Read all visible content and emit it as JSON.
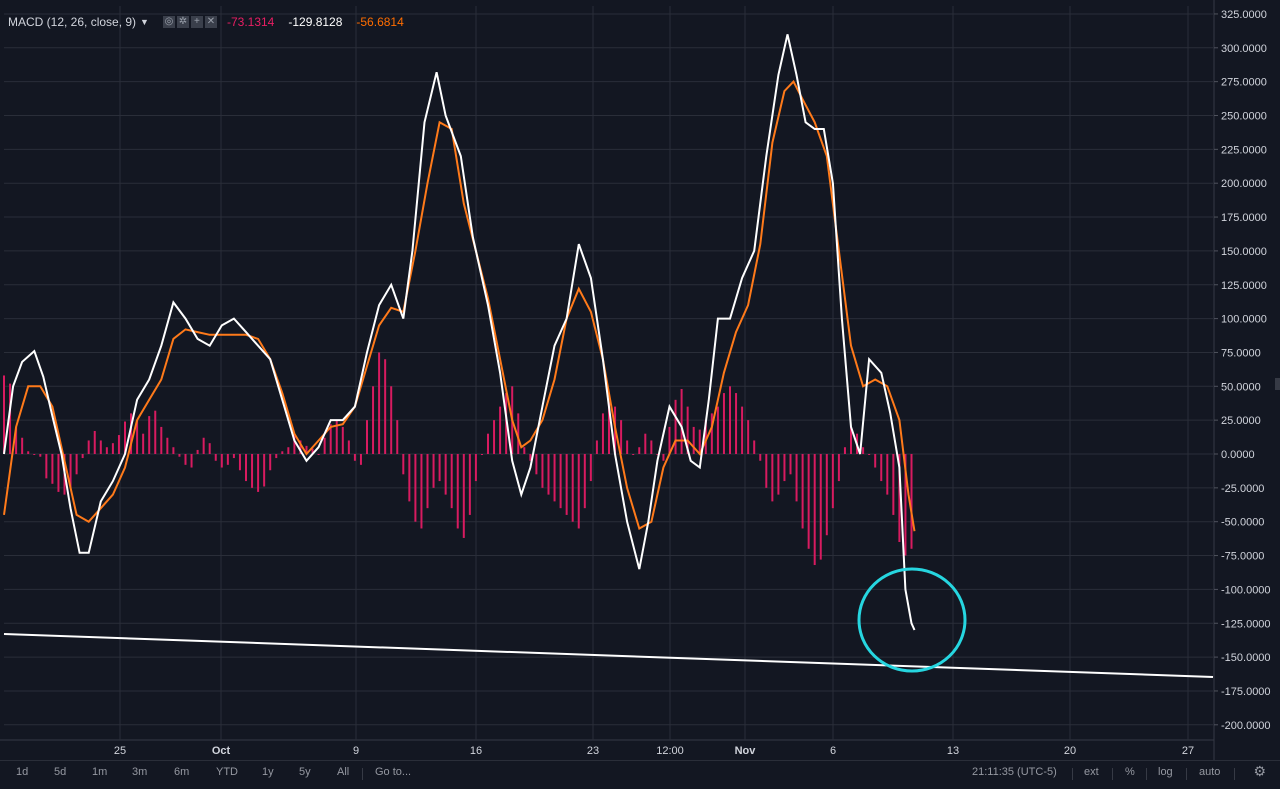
{
  "legend": {
    "title": "MACD (12, 26, close, 9)",
    "values": [
      "-73.1314",
      "-129.8128",
      "-56.6814"
    ]
  },
  "colors": {
    "background": "#131722",
    "grid": "#2a2e39",
    "macd": "#ffffff",
    "signal": "#ff7a1a",
    "histogram": "#d81b60",
    "annotation_circle": "#26d6e0",
    "trendline": "#ffffff"
  },
  "timeframes": [
    "1d",
    "5d",
    "1m",
    "3m",
    "6m",
    "YTD",
    "1y",
    "5y",
    "All",
    "Go to..."
  ],
  "status": {
    "clock": "21:11:35 (UTC-5)",
    "ext": "ext",
    "percent": "%",
    "log": "log",
    "auto": "auto"
  },
  "chart_data": {
    "type": "line",
    "title": "",
    "ylim": [
      -210,
      325
    ],
    "y_ticks": [
      "325.0000",
      "300.0000",
      "275.0000",
      "250.0000",
      "225.0000",
      "200.0000",
      "175.0000",
      "150.0000",
      "125.0000",
      "100.0000",
      "75.0000",
      "50.0000",
      "25.0000",
      "0.0000",
      "-25.0000",
      "-50.0000",
      "-75.0000",
      "-100.0000",
      "-125.0000",
      "-150.0000",
      "-175.0000",
      "-200.0000"
    ],
    "x_ticks": [
      "25",
      "Oct",
      "9",
      "16",
      "23",
      "12:00",
      "Nov",
      "6",
      "13",
      "20",
      "27"
    ],
    "bold_x_ticks": [
      "Oct",
      "Nov"
    ],
    "grid": true,
    "series": [
      {
        "role": "macd",
        "points": [
          [
            0.0,
            0
          ],
          [
            1.5,
            50
          ],
          [
            3.0,
            68
          ],
          [
            5.0,
            76
          ],
          [
            6.5,
            57
          ],
          [
            8.0,
            28
          ],
          [
            9.5,
            0
          ],
          [
            11.0,
            -40
          ],
          [
            12.5,
            -73
          ],
          [
            14.0,
            -73
          ],
          [
            16.0,
            -35
          ],
          [
            18.0,
            -20
          ],
          [
            20.0,
            0
          ],
          [
            22.0,
            40
          ],
          [
            24.0,
            55
          ],
          [
            26.0,
            80
          ],
          [
            28.0,
            112
          ],
          [
            30.0,
            100
          ],
          [
            32.0,
            85
          ],
          [
            34.0,
            80
          ],
          [
            36.0,
            95
          ],
          [
            38.0,
            100
          ],
          [
            40.0,
            90
          ],
          [
            42.0,
            80
          ],
          [
            44.0,
            70
          ],
          [
            46.0,
            40
          ],
          [
            48.0,
            10
          ],
          [
            50.0,
            -5
          ],
          [
            52.0,
            5
          ],
          [
            54.0,
            25
          ],
          [
            56.0,
            25
          ],
          [
            58.0,
            35
          ],
          [
            60.0,
            75
          ],
          [
            62.0,
            110
          ],
          [
            64.0,
            125
          ],
          [
            66.0,
            100
          ],
          [
            67.5,
            150
          ],
          [
            69.5,
            245
          ],
          [
            71.5,
            282
          ],
          [
            73.0,
            250
          ],
          [
            75.5,
            220
          ],
          [
            77.5,
            160
          ],
          [
            80.0,
            110
          ],
          [
            82.0,
            60
          ],
          [
            84.0,
            -5
          ],
          [
            85.5,
            -30
          ],
          [
            87.0,
            -10
          ],
          [
            89.0,
            35
          ],
          [
            91.0,
            80
          ],
          [
            93.0,
            100
          ],
          [
            95.0,
            155
          ],
          [
            97.0,
            130
          ],
          [
            99.0,
            70
          ],
          [
            101.0,
            0
          ],
          [
            103.0,
            -50
          ],
          [
            105.0,
            -85
          ],
          [
            106.5,
            -50
          ],
          [
            108.0,
            -5
          ],
          [
            110.0,
            35
          ],
          [
            112.0,
            20
          ],
          [
            113.5,
            -5
          ],
          [
            115.0,
            -10
          ],
          [
            116.5,
            40
          ],
          [
            118.0,
            100
          ],
          [
            120.0,
            100
          ],
          [
            122.0,
            130
          ],
          [
            124.0,
            150
          ],
          [
            126.0,
            220
          ],
          [
            128.0,
            280
          ],
          [
            129.5,
            310
          ],
          [
            131.0,
            280
          ],
          [
            132.5,
            245
          ],
          [
            134.0,
            240
          ],
          [
            135.5,
            240
          ],
          [
            137.0,
            200
          ],
          [
            138.5,
            100
          ],
          [
            140.0,
            20
          ],
          [
            141.5,
            0
          ],
          [
            143.0,
            70
          ],
          [
            145.0,
            60
          ],
          [
            146.5,
            30
          ],
          [
            148.0,
            -10
          ],
          [
            149.0,
            -100
          ],
          [
            150.0,
            -125
          ],
          [
            150.5,
            -130
          ]
        ]
      },
      {
        "role": "signal",
        "points": [
          [
            0.0,
            -45
          ],
          [
            2.0,
            20
          ],
          [
            4.0,
            50
          ],
          [
            6.0,
            50
          ],
          [
            8.0,
            35
          ],
          [
            10.0,
            -5
          ],
          [
            12.0,
            -45
          ],
          [
            14.0,
            -50
          ],
          [
            16.0,
            -40
          ],
          [
            18.0,
            -30
          ],
          [
            20.0,
            -10
          ],
          [
            22.0,
            25
          ],
          [
            24.0,
            40
          ],
          [
            26.0,
            55
          ],
          [
            28.0,
            85
          ],
          [
            30.0,
            92
          ],
          [
            32.0,
            90
          ],
          [
            34.0,
            88
          ],
          [
            36.0,
            88
          ],
          [
            38.0,
            88
          ],
          [
            40.0,
            88
          ],
          [
            42.0,
            85
          ],
          [
            44.0,
            70
          ],
          [
            46.0,
            45
          ],
          [
            48.0,
            15
          ],
          [
            50.0,
            0
          ],
          [
            52.0,
            10
          ],
          [
            54.0,
            20
          ],
          [
            56.0,
            22
          ],
          [
            58.0,
            35
          ],
          [
            60.0,
            65
          ],
          [
            62.0,
            95
          ],
          [
            64.0,
            108
          ],
          [
            66.0,
            105
          ],
          [
            68.0,
            150
          ],
          [
            70.0,
            200
          ],
          [
            72.0,
            245
          ],
          [
            74.0,
            240
          ],
          [
            76.0,
            185
          ],
          [
            78.0,
            150
          ],
          [
            80.0,
            115
          ],
          [
            82.0,
            70
          ],
          [
            84.0,
            25
          ],
          [
            85.5,
            5
          ],
          [
            87.0,
            10
          ],
          [
            89.0,
            25
          ],
          [
            91.0,
            55
          ],
          [
            93.0,
            100
          ],
          [
            95.0,
            122
          ],
          [
            97.0,
            105
          ],
          [
            99.0,
            70
          ],
          [
            101.0,
            20
          ],
          [
            103.0,
            -25
          ],
          [
            105.0,
            -55
          ],
          [
            107.0,
            -50
          ],
          [
            109.0,
            -10
          ],
          [
            111.0,
            10
          ],
          [
            113.0,
            10
          ],
          [
            115.0,
            0
          ],
          [
            117.0,
            20
          ],
          [
            119.0,
            60
          ],
          [
            121.0,
            90
          ],
          [
            123.0,
            110
          ],
          [
            125.0,
            155
          ],
          [
            127.0,
            230
          ],
          [
            129.0,
            268
          ],
          [
            130.5,
            275
          ],
          [
            132.0,
            262
          ],
          [
            134.0,
            245
          ],
          [
            136.0,
            220
          ],
          [
            138.0,
            150
          ],
          [
            140.0,
            80
          ],
          [
            142.0,
            50
          ],
          [
            144.0,
            55
          ],
          [
            146.0,
            50
          ],
          [
            148.0,
            25
          ],
          [
            149.5,
            -30
          ],
          [
            150.5,
            -57
          ]
        ]
      },
      {
        "role": "histogram",
        "points": [
          [
            0,
            58
          ],
          [
            1,
            52
          ],
          [
            2,
            20
          ],
          [
            3,
            12
          ],
          [
            4,
            2
          ],
          [
            5,
            0
          ],
          [
            6,
            -2
          ],
          [
            7,
            -18
          ],
          [
            8,
            -22
          ],
          [
            9,
            -28
          ],
          [
            10,
            -30
          ],
          [
            11,
            -25
          ],
          [
            12,
            -15
          ],
          [
            13,
            -3
          ],
          [
            14,
            10
          ],
          [
            15,
            17
          ],
          [
            16,
            10
          ],
          [
            17,
            5
          ],
          [
            18,
            8
          ],
          [
            19,
            14
          ],
          [
            20,
            24
          ],
          [
            21,
            30
          ],
          [
            22,
            25
          ],
          [
            23,
            15
          ],
          [
            24,
            28
          ],
          [
            25,
            32
          ],
          [
            26,
            20
          ],
          [
            27,
            12
          ],
          [
            28,
            5
          ],
          [
            29,
            -2
          ],
          [
            30,
            -8
          ],
          [
            31,
            -10
          ],
          [
            32,
            3
          ],
          [
            33,
            12
          ],
          [
            34,
            8
          ],
          [
            35,
            -5
          ],
          [
            36,
            -10
          ],
          [
            37,
            -8
          ],
          [
            38,
            -3
          ],
          [
            39,
            -12
          ],
          [
            40,
            -20
          ],
          [
            41,
            -25
          ],
          [
            42,
            -28
          ],
          [
            43,
            -24
          ],
          [
            44,
            -12
          ],
          [
            45,
            -3
          ],
          [
            46,
            2
          ],
          [
            47,
            5
          ],
          [
            48,
            15
          ],
          [
            49,
            10
          ],
          [
            50,
            6
          ],
          [
            51,
            4
          ],
          [
            52,
            0
          ],
          [
            53,
            12
          ],
          [
            54,
            22
          ],
          [
            55,
            25
          ],
          [
            56,
            20
          ],
          [
            57,
            10
          ],
          [
            58,
            -5
          ],
          [
            59,
            -8
          ],
          [
            60,
            25
          ],
          [
            61,
            50
          ],
          [
            62,
            75
          ],
          [
            63,
            70
          ],
          [
            64,
            50
          ],
          [
            65,
            25
          ],
          [
            66,
            -15
          ],
          [
            67,
            -35
          ],
          [
            68,
            -50
          ],
          [
            69,
            -55
          ],
          [
            70,
            -40
          ],
          [
            71,
            -25
          ],
          [
            72,
            -20
          ],
          [
            73,
            -30
          ],
          [
            74,
            -40
          ],
          [
            75,
            -55
          ],
          [
            76,
            -62
          ],
          [
            77,
            -45
          ],
          [
            78,
            -20
          ],
          [
            79,
            0
          ],
          [
            80,
            15
          ],
          [
            81,
            25
          ],
          [
            82,
            35
          ],
          [
            83,
            45
          ],
          [
            84,
            50
          ],
          [
            85,
            30
          ],
          [
            86,
            5
          ],
          [
            87,
            -5
          ],
          [
            88,
            -15
          ],
          [
            89,
            -25
          ],
          [
            90,
            -30
          ],
          [
            91,
            -35
          ],
          [
            92,
            -40
          ],
          [
            93,
            -45
          ],
          [
            94,
            -50
          ],
          [
            95,
            -55
          ],
          [
            96,
            -40
          ],
          [
            97,
            -20
          ],
          [
            98,
            10
          ],
          [
            99,
            30
          ],
          [
            100,
            38
          ],
          [
            101,
            35
          ],
          [
            102,
            25
          ],
          [
            103,
            10
          ],
          [
            104,
            0
          ],
          [
            105,
            5
          ],
          [
            106,
            15
          ],
          [
            107,
            10
          ],
          [
            108,
            0
          ],
          [
            109,
            -5
          ],
          [
            110,
            20
          ],
          [
            111,
            40
          ],
          [
            112,
            48
          ],
          [
            113,
            35
          ],
          [
            114,
            20
          ],
          [
            115,
            18
          ],
          [
            116,
            25
          ],
          [
            117,
            30
          ],
          [
            118,
            35
          ],
          [
            119,
            45
          ],
          [
            120,
            50
          ],
          [
            121,
            45
          ],
          [
            122,
            35
          ],
          [
            123,
            25
          ],
          [
            124,
            10
          ],
          [
            125,
            -5
          ],
          [
            126,
            -25
          ],
          [
            127,
            -35
          ],
          [
            128,
            -30
          ],
          [
            129,
            -20
          ],
          [
            130,
            -15
          ],
          [
            131,
            -35
          ],
          [
            132,
            -55
          ],
          [
            133,
            -70
          ],
          [
            134,
            -82
          ],
          [
            135,
            -78
          ],
          [
            136,
            -60
          ],
          [
            137,
            -40
          ],
          [
            138,
            -20
          ],
          [
            139,
            5
          ],
          [
            140,
            20
          ],
          [
            141,
            15
          ],
          [
            142,
            5
          ],
          [
            143,
            0
          ],
          [
            144,
            -10
          ],
          [
            145,
            -20
          ],
          [
            146,
            -30
          ],
          [
            147,
            -45
          ],
          [
            148,
            -65
          ],
          [
            149,
            -75
          ],
          [
            150,
            -70
          ]
        ]
      }
    ]
  }
}
